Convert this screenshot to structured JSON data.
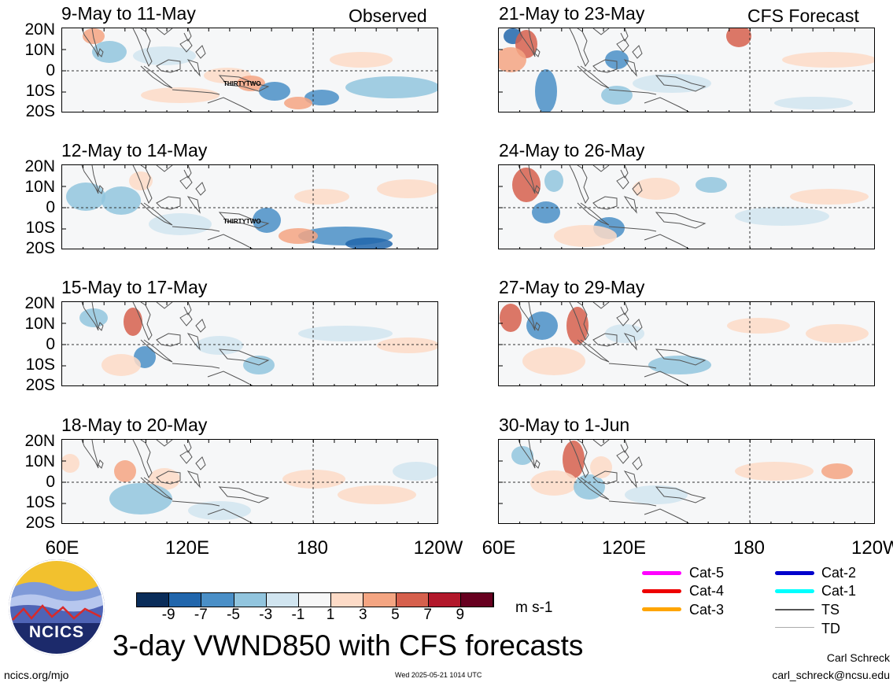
{
  "header": {
    "observed_label": "Observed",
    "forecast_label": "CFS Forecast"
  },
  "panels": {
    "observed": [
      {
        "title": "9-May to 11-May",
        "storm_label": "THIRTYTWO"
      },
      {
        "title": "12-May to 14-May",
        "storm_label": "THIRTYTWO"
      },
      {
        "title": "15-May to 17-May",
        "storm_label": ""
      },
      {
        "title": "18-May to 20-May",
        "storm_label": ""
      }
    ],
    "forecast": [
      {
        "title": "21-May to 23-May"
      },
      {
        "title": "24-May to 26-May"
      },
      {
        "title": "27-May to 29-May"
      },
      {
        "title": "30-May to 1-Jun"
      }
    ]
  },
  "axes": {
    "lat_ticks": [
      "20N",
      "10N",
      "0",
      "10S",
      "20S"
    ],
    "lon_ticks": [
      "60E",
      "120E",
      "180",
      "120W"
    ]
  },
  "colorbar": {
    "ticks": [
      "-9",
      "-7",
      "-5",
      "-3",
      "-1",
      "1",
      "3",
      "5",
      "7",
      "9"
    ],
    "units": "m s-1",
    "colors": [
      "#0a2d5a",
      "#2166ac",
      "#4a8fc7",
      "#92c5de",
      "#d1e5f0",
      "#f7f7f7",
      "#fddbc7",
      "#f4a582",
      "#d6604d",
      "#b2182b",
      "#67001f"
    ]
  },
  "legend": {
    "items": [
      {
        "label": "Cat-5",
        "color": "#ff00ff"
      },
      {
        "label": "Cat-4",
        "color": "#ee0000"
      },
      {
        "label": "Cat-3",
        "color": "#ffa500"
      },
      {
        "label": "Cat-2",
        "color": "#0000cc"
      },
      {
        "label": "Cat-1",
        "color": "#00ffff"
      },
      {
        "label": "TS",
        "color": "#555555"
      },
      {
        "label": "TD",
        "color": "#aaaaaa"
      }
    ]
  },
  "footer": {
    "main_title": "3-day VWND850 with CFS forecasts",
    "logo_text": "NCICS",
    "site": "ncics.org/mjo",
    "timestamp": "Wed 2025-05-21 1014 UTC",
    "author": "Carl Schreck",
    "email": "carl_schreck@ncsu.edu"
  }
}
